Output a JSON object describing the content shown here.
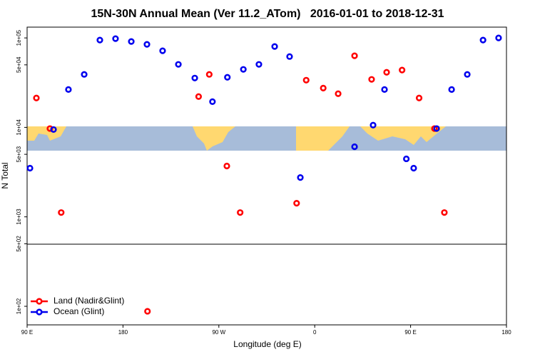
{
  "chart_data": {
    "type": "scatter",
    "title": "15N-30N Annual Mean (Ver 11.2_ATom)   2016-01-01 to 2018-12-31",
    "xlabel": "Longitude (deg E)",
    "ylabel": "N Total",
    "xlim": [
      90,
      540
    ],
    "xticks": [
      {
        "value": 90,
        "label": "90 E"
      },
      {
        "value": 180,
        "label": "180"
      },
      {
        "value": 270,
        "label": "90 W"
      },
      {
        "value": 360,
        "label": "0"
      },
      {
        "value": 450,
        "label": "90 E"
      },
      {
        "value": 540,
        "label": "180"
      }
    ],
    "ylim": [
      62,
      132000
    ],
    "ylog": true,
    "yticks": [
      {
        "value": 100000,
        "label": "1e+05"
      },
      {
        "value": 50000,
        "label": "5e+04"
      },
      {
        "value": 10000,
        "label": "1e+04"
      },
      {
        "value": 5000,
        "label": "5e+03"
      },
      {
        "value": 1000,
        "label": "1e+03"
      },
      {
        "value": 500,
        "label": "5e+02"
      },
      {
        "value": 100,
        "label": "1e+02"
      }
    ],
    "legend": "lower left",
    "series": [
      {
        "name": "Land (Nadir&Glint)",
        "color": "#ff0000",
        "x": [
          98.7,
          111.4,
          122,
          203,
          251,
          261,
          277.5,
          290,
          343,
          352,
          368,
          382,
          397.4,
          413.4,
          427.5,
          442,
          458,
          472.4,
          481.7
        ],
        "values": [
          21300,
          9700,
          1117,
          88,
          22100,
          39100,
          3700,
          1117,
          1420,
          33700,
          27500,
          23800,
          63100,
          34400,
          41300,
          43700,
          21300,
          9700,
          1117
        ]
      },
      {
        "name": "Ocean (Glint)",
        "color": "#0000ee",
        "x": [
          92.7,
          114.8,
          128.8,
          143.6,
          158.3,
          173,
          187.8,
          202.5,
          217.2,
          232,
          247.4,
          264,
          278,
          293,
          307.6,
          322.4,
          336.4,
          346.5,
          397.4,
          414.8,
          425.5,
          446,
          452.9,
          474.4,
          488.5,
          503.2,
          518,
          532.6
        ],
        "values": [
          3500,
          9460,
          26500,
          39100,
          94600,
          98200,
          91200,
          84700,
          71800,
          50600,
          35600,
          19400,
          36300,
          44500,
          50600,
          80200,
          61900,
          2750,
          6080,
          10600,
          26500,
          4450,
          3500,
          9700,
          26500,
          39100,
          94600,
          100000
        ]
      }
    ]
  }
}
